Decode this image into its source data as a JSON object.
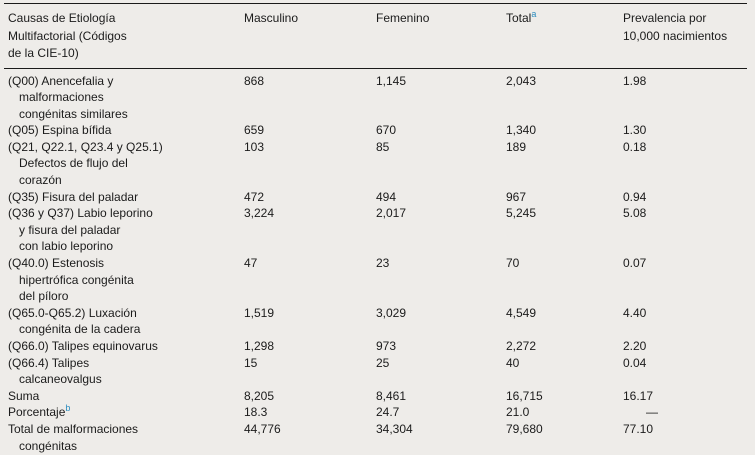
{
  "page": {
    "background_color": "#eeece9",
    "text_color": "#1b1b1b",
    "rule_color": "#1a1a1a",
    "footnote_marker_color": "#2b8cbe"
  },
  "table": {
    "header": {
      "col1": "Causas de Etiología\nMultifactorial (Códigos\nde la CIE-10)",
      "col2": "Masculino",
      "col3": "Femenino",
      "col4": "Total",
      "col4_sup": "a",
      "col5": "Prevalencia por\n10,000 nacimientos"
    },
    "rows": [
      {
        "label": "(Q00) Anencefalia y\nmalformaciones\ncongénitas similares",
        "masculino": "868",
        "femenino": "1,145",
        "total": "2,043",
        "prevalencia": "1.98"
      },
      {
        "label": "(Q05) Espina bífida",
        "masculino": "659",
        "femenino": "670",
        "total": "1,340",
        "prevalencia": "1.30"
      },
      {
        "label": "(Q21, Q22.1, Q23.4 y Q25.1)\nDefectos de flujo del\ncorazón",
        "masculino": "103",
        "femenino": "85",
        "total": "189",
        "prevalencia": "0.18"
      },
      {
        "label": "(Q35) Fisura del paladar",
        "masculino": "472",
        "femenino": "494",
        "total": "967",
        "prevalencia": "0.94"
      },
      {
        "label": "(Q36 y Q37) Labio leporino\ny fisura del paladar\ncon labio leporino",
        "masculino": "3,224",
        "femenino": "2,017",
        "total": "5,245",
        "prevalencia": "5.08"
      },
      {
        "label": "(Q40.0) Estenosis\nhipertrófica congénita\ndel píloro",
        "masculino": "47",
        "femenino": "23",
        "total": "70",
        "prevalencia": "0.07"
      },
      {
        "label": "(Q65.0-Q65.2) Luxación\ncongénita de la cadera",
        "masculino": "1,519",
        "femenino": "3,029",
        "total": "4,549",
        "prevalencia": "4.40"
      },
      {
        "label": "(Q66.0) Talipes equinovarus",
        "masculino": "1,298",
        "femenino": "973",
        "total": "2,272",
        "prevalencia": "2.20"
      },
      {
        "label": "(Q66.4) Talipes\ncalcaneovalgus",
        "masculino": "15",
        "femenino": "25",
        "total": "40",
        "prevalencia": "0.04"
      },
      {
        "label": "Suma",
        "masculino": "8,205",
        "femenino": "8,461",
        "total": "16,715",
        "prevalencia": "16.17"
      },
      {
        "label": "Porcentaje",
        "label_sup": "b",
        "masculino": "18.3",
        "femenino": "24.7",
        "total": "21.0",
        "prevalencia": "—"
      },
      {
        "label": "Total de malformaciones\ncongénitas",
        "masculino": "44,776",
        "femenino": "34,304",
        "total": "79,680",
        "prevalencia": "77.10"
      }
    ]
  }
}
